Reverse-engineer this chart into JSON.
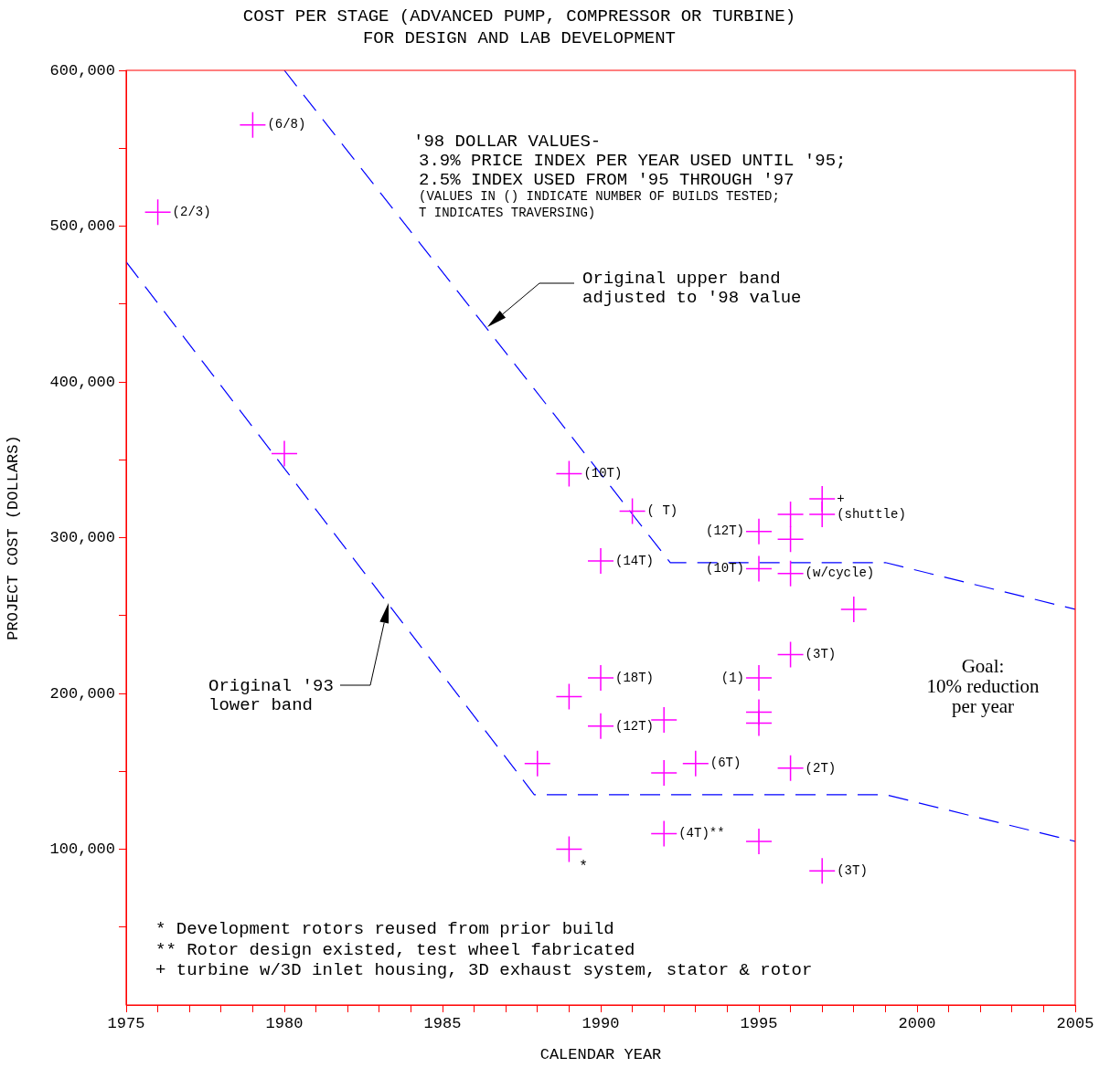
{
  "chart_data": {
    "type": "scatter",
    "title": "COST PER STAGE (ADVANCED PUMP, COMPRESSOR OR TURBINE)",
    "subtitle": "FOR DESIGN AND LAB DEVELOPMENT",
    "xlabel": "CALENDAR YEAR",
    "ylabel": "PROJECT COST (DOLLARS)",
    "xlim": [
      1975,
      2005
    ],
    "xticks": [
      1975,
      {
        "value": 1976,
        "label": null
      },
      {
        "value": 1977,
        "label": null
      },
      {
        "value": 1978,
        "label": null
      },
      {
        "value": 1979,
        "label": null
      },
      1980,
      {
        "value": 1981,
        "label": null
      },
      {
        "value": 1982,
        "label": null
      },
      {
        "value": 1983,
        "label": null
      },
      {
        "value": 1984,
        "label": null
      },
      1985,
      {
        "value": 1986,
        "label": null
      },
      {
        "value": 1987,
        "label": null
      },
      {
        "value": 1988,
        "label": null
      },
      {
        "value": 1989,
        "label": null
      },
      1990,
      {
        "value": 1991,
        "label": null
      },
      {
        "value": 1992,
        "label": null
      },
      {
        "value": 1993,
        "label": null
      },
      {
        "value": 1994,
        "label": null
      },
      1995,
      {
        "value": 1996,
        "label": null
      },
      {
        "value": 1997,
        "label": null
      },
      {
        "value": 1998,
        "label": null
      },
      {
        "value": 1999,
        "label": null
      },
      2000,
      {
        "value": 2001,
        "label": null
      },
      {
        "value": 2002,
        "label": null
      },
      {
        "value": 2003,
        "label": null
      },
      {
        "value": 2004,
        "label": null
      },
      2005
    ],
    "ylim": [
      0,
      600000
    ],
    "yticks": [
      {
        "value": 50000,
        "label": null
      },
      {
        "value": 100000,
        "label": "100,000"
      },
      {
        "value": 150000,
        "label": null
      },
      {
        "value": 200000,
        "label": "200,000"
      },
      {
        "value": 250000,
        "label": null
      },
      {
        "value": 300000,
        "label": "300,000"
      },
      {
        "value": 350000,
        "label": null
      },
      {
        "value": 400000,
        "label": "400,000"
      },
      {
        "value": 450000,
        "label": null
      },
      {
        "value": 500000,
        "label": "500,000"
      },
      {
        "value": 550000,
        "label": null
      },
      {
        "value": 600000,
        "label": "600,000"
      }
    ],
    "series": [
      {
        "type": "scatter",
        "color": "#ff00ff",
        "marker": "cross",
        "x": [
          1976,
          1979,
          1980,
          1989,
          1991,
          1990,
          1995,
          1996,
          1996,
          1997,
          1997,
          1995,
          1996,
          1998,
          1996,
          1995,
          1990,
          1989,
          1990,
          1992,
          1995,
          1995,
          1988,
          1992,
          1993,
          1996,
          1992,
          1989,
          1995,
          1997
        ],
        "values": [
          509000,
          565000,
          354000,
          341000,
          317000,
          285000,
          304000,
          315000,
          299000,
          325000,
          315000,
          280000,
          277000,
          254000,
          225000,
          210000,
          210000,
          198000,
          179000,
          183000,
          188000,
          181000,
          155000,
          149000,
          155000,
          152000,
          110000,
          100000,
          105000,
          86000
        ]
      },
      {
        "type": "line",
        "color": "#0000ff",
        "marker": "none",
        "line_style": "dashed",
        "x": [
          1980,
          1992.2,
          1999,
          2005
        ],
        "values": [
          600000,
          284000,
          284000,
          254000
        ]
      },
      {
        "type": "line",
        "color": "#0000ff",
        "marker": "none",
        "line_style": "dashed",
        "x": [
          1975,
          1987.9,
          1999,
          2005
        ],
        "values": [
          477000,
          135000,
          135000,
          105000
        ]
      }
    ],
    "annotations": [
      "'98 DOLLAR VALUES-",
      "3.9% PRICE INDEX PER YEAR USED UNTIL '95;",
      "2.5% INDEX USED FROM '95 THROUGH '97",
      "(VALUES IN () INDICATE NUMBER OF BUILDS TESTED;",
      "T INDICATES TRAVERSING)",
      "Original upper band\nadjusted to '98 value",
      "Original '93\nlower band",
      "Goal:\n10% reduction\nper year",
      "* Development rotors reused from prior build",
      "** Rotor design existed, test wheel fabricated",
      "+ turbine w/3D inlet housing, 3D exhaust system, stator & rotor",
      "*",
      {
        "text": "(2/3)",
        "x": 1976,
        "y": 509000
      },
      {
        "text": "(6/8)",
        "x": 1979,
        "y": 565000
      },
      {
        "text": "(10T)",
        "x": 1989,
        "y": 341000
      },
      {
        "text": "( T)",
        "x": 1991,
        "y": 317000
      },
      {
        "text": "(14T)",
        "x": 1990,
        "y": 285000
      },
      {
        "text": "(12T)",
        "x": 1995,
        "y": 304000
      },
      {
        "text": "+",
        "x": 1997,
        "y": 325000
      },
      {
        "text": "(shuttle)",
        "x": 1997,
        "y": 315000
      },
      {
        "text": "(10T)",
        "x": 1995,
        "y": 280000
      },
      {
        "text": "(w/cycle)",
        "x": 1996,
        "y": 277000
      },
      {
        "text": "(3T)",
        "x": 1996,
        "y": 225000
      },
      {
        "text": "(1)",
        "x": 1995,
        "y": 210000
      },
      {
        "text": "(18T)",
        "x": 1990,
        "y": 210000
      },
      {
        "text": "(12T)",
        "x": 1990,
        "y": 179000
      },
      {
        "text": "(6T)",
        "x": 1993,
        "y": 155000
      },
      {
        "text": "(2T)",
        "x": 1996,
        "y": 152000
      },
      {
        "text": "(4T)**",
        "x": 1992,
        "y": 110000
      },
      {
        "text": "(3T)",
        "x": 1997,
        "y": 86000
      }
    ]
  }
}
